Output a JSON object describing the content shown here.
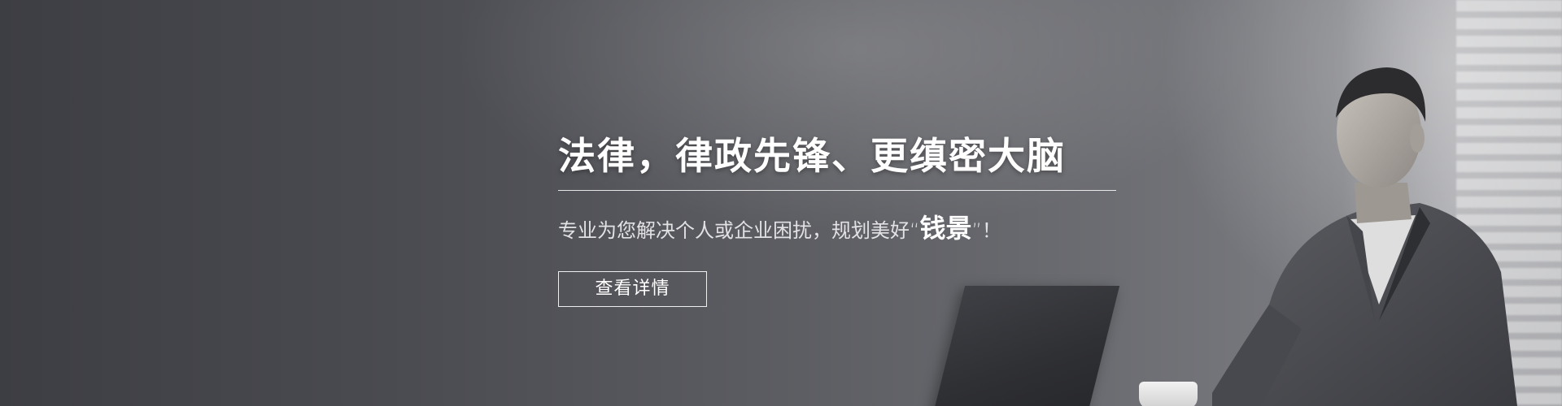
{
  "banner": {
    "title": "法律，律政先锋、更缜密大脑",
    "subtitle_before": "专业为您解决个人或企业困扰，规划美好“",
    "subtitle_highlight": "钱景",
    "subtitle_after": "”！",
    "button_label": "查看详情"
  },
  "colors": {
    "background_dark": "#3d3e44",
    "background_light": "#8e8f93",
    "text": "#ffffff"
  }
}
